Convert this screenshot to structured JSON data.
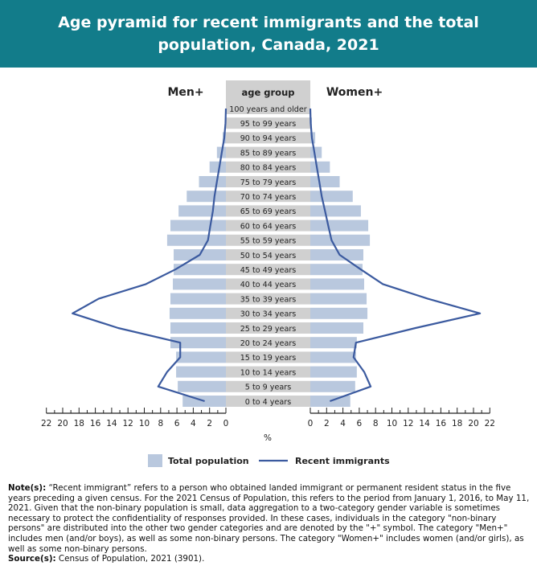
{
  "header": {
    "title": "Age pyramid for recent immigrants and the total population, Canada, 2021"
  },
  "colors": {
    "header_bg": "#127c8a",
    "total_bar": "#b9c8de",
    "immigrant_line": "#3b5a9f",
    "label_bg": "#d0d0d0"
  },
  "chart_data": {
    "type": "population-pyramid",
    "title": "Age pyramid for recent immigrants and the total population, Canada, 2021",
    "left_label": "Men+",
    "right_label": "Women+",
    "center_header": "age group",
    "xlabel": "%",
    "xlim": [
      0,
      22
    ],
    "ticks": [
      0,
      2,
      4,
      6,
      8,
      10,
      12,
      14,
      16,
      18,
      20,
      22
    ],
    "categories": [
      "100 years and older",
      "95 to 99 years",
      "90 to 94 years",
      "85 to 89 years",
      "80 to 84 years",
      "75 to 79 years",
      "70 to 74 years",
      "65 to 69 years",
      "60 to 64 years",
      "55 to 59 years",
      "50 to 54 years",
      "45 to 49 years",
      "40 to 44 years",
      "35 to 39 years",
      "30 to 34 years",
      "25 to 29 years",
      "20 to 24 years",
      "15 to 19 years",
      "10 to 14 years",
      "5 to 9 years",
      "0 to 4 years"
    ],
    "series": [
      {
        "name": "Total population",
        "side": "men",
        "values": [
          0,
          0.1,
          0.4,
          1.1,
          2.0,
          3.3,
          4.8,
          5.8,
          6.8,
          7.2,
          6.4,
          6.4,
          6.5,
          6.8,
          6.9,
          6.8,
          6.8,
          6.1,
          6.1,
          5.9,
          5.3
        ]
      },
      {
        "name": "Total population",
        "side": "women",
        "values": [
          0,
          0.2,
          0.6,
          1.4,
          2.4,
          3.6,
          5.2,
          6.2,
          7.1,
          7.3,
          6.5,
          6.4,
          6.6,
          6.9,
          7.0,
          6.5,
          5.7,
          5.6,
          5.7,
          5.5,
          4.9
        ]
      },
      {
        "name": "Recent immigrants",
        "side": "men",
        "values": [
          0,
          0.05,
          0.2,
          0.5,
          0.8,
          1.1,
          1.4,
          1.6,
          1.9,
          2.2,
          3.2,
          6.2,
          9.8,
          15.6,
          18.8,
          13.2,
          5.6,
          5.6,
          7.2,
          8.3,
          2.6
        ]
      },
      {
        "name": "Recent immigrants",
        "side": "women",
        "values": [
          0,
          0.05,
          0.2,
          0.5,
          0.8,
          1.1,
          1.4,
          1.8,
          2.2,
          2.6,
          3.6,
          6.2,
          8.9,
          14.4,
          20.8,
          12.9,
          5.6,
          5.3,
          6.6,
          7.4,
          2.4
        ]
      }
    ],
    "legend": [
      "Total population",
      "Recent immigrants"
    ],
    "legend_position": "bottom"
  },
  "notes": {
    "note_label": "Note(s):",
    "note_text": " “Recent immigrant” refers to a person who obtained landed immigrant or permanent resident status in the five years preceding a given census. For the 2021 Census of Population, this refers to the period from January 1, 2016, to May 11, 2021. Given that the non-binary population is small, data aggregation to a two-category gender variable is sometimes necessary to protect the confidentiality of responses provided. In these cases, individuals in the category \"non-binary persons\" are distributed into the other two gender categories and are denoted by the \"+\" symbol. The category \"Men+\" includes men (and/or boys), as well as some non-binary persons. The category \"Women+\" includes women (and/or girls), as well as some non-binary persons.",
    "source_label": "Source(s):",
    "source_text": " Census of Population, 2021 (3901)."
  }
}
